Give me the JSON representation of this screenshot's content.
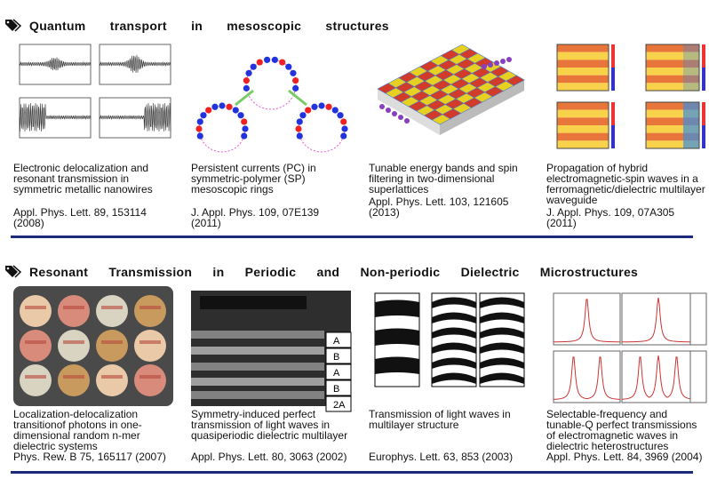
{
  "sections": [
    {
      "title": "Quantum transport in mesoscopic structures",
      "items": [
        {
          "caption": [
            "Electronic delocalization and",
            "resonant transmission in",
            "symmetric metallic nanowires"
          ],
          "ref": [
            "Appl. Phys. Lett. 89, 153114",
            "(2008)"
          ]
        },
        {
          "caption": [
            "Persistent currents (PC) in",
            "symmetric-polymer (SP)",
            "mesoscopic rings"
          ],
          "ref": [
            "J. Appl. Phys. 109, 07E139",
            "(2011)"
          ]
        },
        {
          "caption": [
            "Tunable energy bands and spin",
            "filtering in two-dimensional",
            "superlattices"
          ],
          "ref": [
            "Appl. Phys. Lett. 103, 121605",
            "(2013)"
          ]
        },
        {
          "caption": [
            "Propagation of hybrid",
            "electromagnetic-spin waves in a",
            "ferromagnetic/dielectric multilayer",
            "waveguide"
          ],
          "ref": [
            "J. Appl. Phys. 109, 07A305",
            "(2011)"
          ]
        }
      ]
    },
    {
      "title": "Resonant Transmission in Periodic and Non-periodic Dielectric Microstructures",
      "items": [
        {
          "caption": [
            "Localization-delocalization",
            "transitionof photons in one-",
            "dimensional random n-mer",
            "dielectric systems"
          ],
          "ref": [
            "Phys. Rew. B 75, 165117 (2007)"
          ]
        },
        {
          "caption": [
            "Symmetry-induced perfect",
            "transmission of light waves in",
            "quasiperiodic dielectric multilayer"
          ],
          "ref": [
            "Appl. Phys. Lett. 80, 3063 (2002)"
          ],
          "layers": [
            "A",
            "B",
            "A",
            "B",
            "2A"
          ]
        },
        {
          "caption": [
            "Transmission of light waves in",
            "multilayer structure"
          ],
          "ref": [
            "Europhys. Lett. 63, 853 (2003)"
          ]
        },
        {
          "caption": [
            "Selectable-frequency and",
            "tunable-Q perfect transmissions",
            "of electromagnetic waves in",
            "dielectric heterostructures"
          ],
          "ref": [
            "Appl. Phys. Lett. 84, 3969 (2004)"
          ]
        }
      ]
    }
  ]
}
